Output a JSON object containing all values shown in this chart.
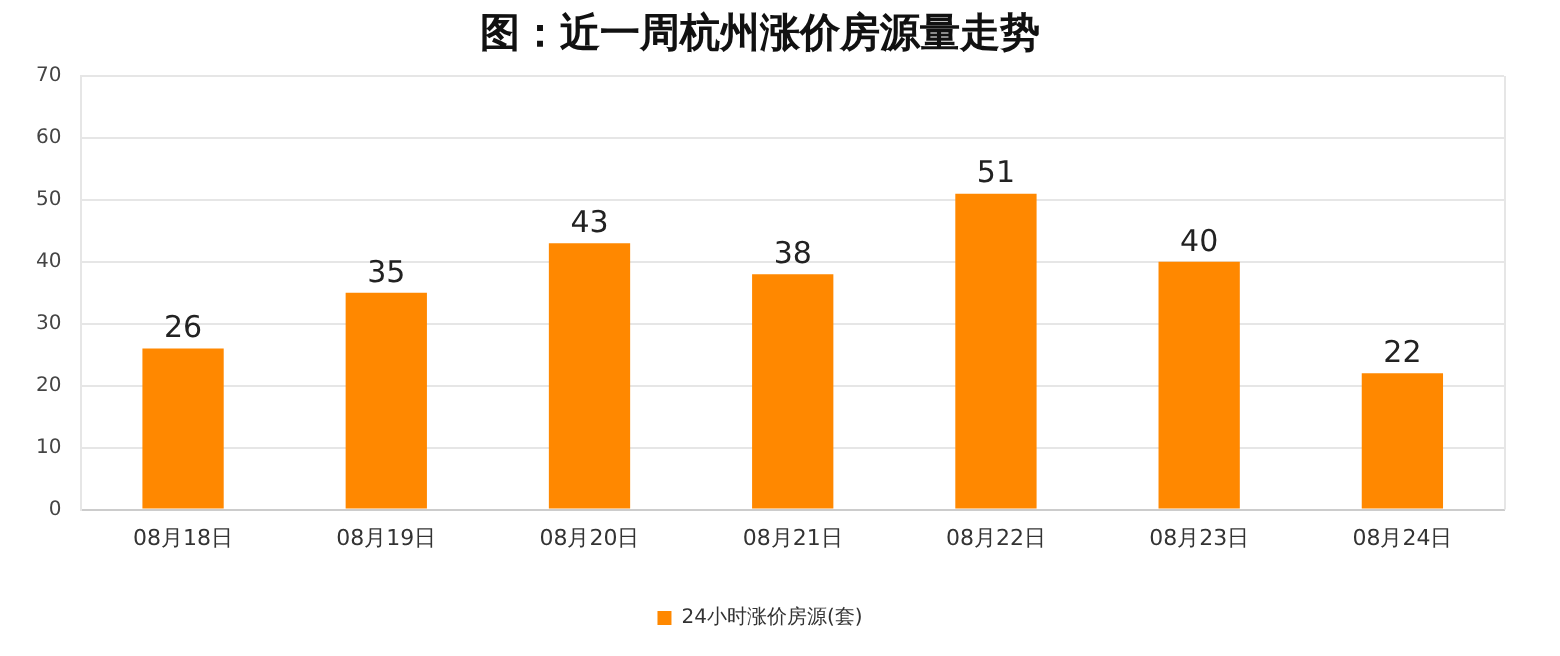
{
  "chart_data": {
    "type": "bar",
    "title": "图：近一周杭州涨价房源量走势",
    "categories": [
      "08月18日",
      "08月19日",
      "08月20日",
      "08月21日",
      "08月22日",
      "08月23日",
      "08月24日"
    ],
    "series": [
      {
        "name": "24小时涨价房源(套)",
        "color": "#ff8800",
        "values": [
          26,
          35,
          43,
          38,
          51,
          40,
          22
        ]
      }
    ],
    "ylim": [
      0,
      70
    ],
    "yticks": [
      0,
      10,
      20,
      30,
      40,
      50,
      60,
      70
    ],
    "grid": "y",
    "legend": "bottom",
    "data_labels": true
  }
}
